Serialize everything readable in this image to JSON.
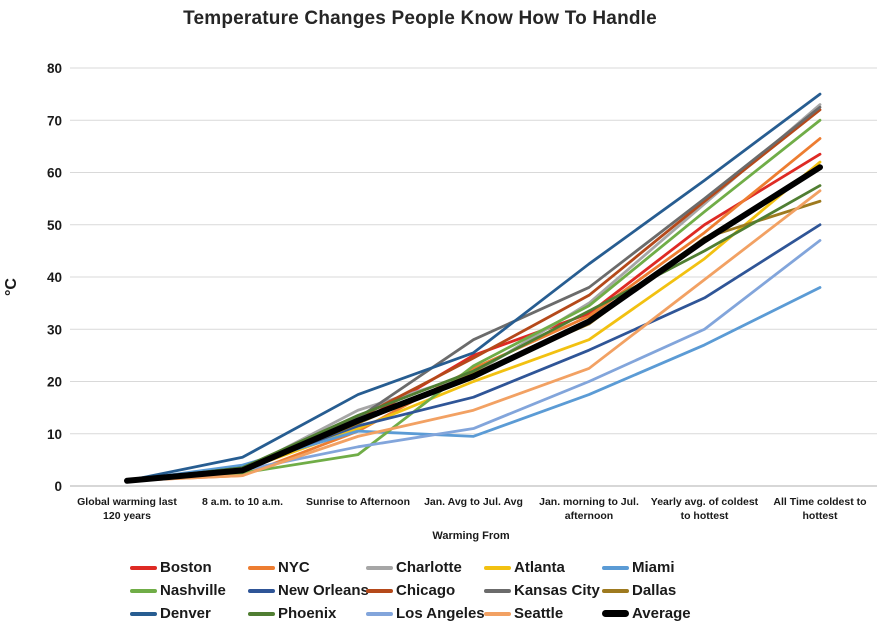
{
  "title": "Temperature Changes People Know How To Handle",
  "chart_data": {
    "type": "line",
    "title": "Temperature Changes People Know How To Handle",
    "xlabel": "Warming From",
    "ylabel": "°C",
    "ylim": [
      0,
      80
    ],
    "y_ticks": [
      0,
      10,
      20,
      30,
      40,
      50,
      60,
      70,
      80
    ],
    "grid": true,
    "legend_position": "bottom",
    "categories": [
      "Global warming last 120 years",
      "8 a.m. to 10 a.m.",
      "Sunrise to Afternoon",
      "Jan. Avg to Jul. Avg",
      "Jan. morning to Jul. afternoon",
      "Yearly avg. of coldest to hottest",
      "All Time coldest to hottest"
    ],
    "category_lines": [
      [
        "Global warming last",
        "120 years"
      ],
      [
        "8 a.m. to 10 a.m."
      ],
      [
        "Sunrise to Afternoon"
      ],
      [
        "Jan. Avg to Jul. Avg"
      ],
      [
        "Jan. morning to Jul.",
        "afternoon"
      ],
      [
        "Yearly avg. of coldest",
        "to hottest"
      ],
      [
        "All Time coldest to",
        "hottest"
      ]
    ],
    "series": [
      {
        "name": "Boston",
        "color": "#DE2A24",
        "width": 2.8,
        "values": [
          1,
          3,
          12,
          25,
          33,
          50,
          63.5
        ]
      },
      {
        "name": "NYC",
        "color": "#ED7D31",
        "width": 2.8,
        "values": [
          1,
          2,
          10.5,
          22.5,
          32.5,
          48.5,
          66.5
        ]
      },
      {
        "name": "Charlotte",
        "color": "#A6A6A6",
        "width": 2.8,
        "values": [
          1,
          3,
          14.5,
          21.5,
          35,
          54,
          73
        ]
      },
      {
        "name": "Atlanta",
        "color": "#F2C111",
        "width": 2.8,
        "values": [
          1,
          3,
          11,
          20,
          28,
          43.5,
          62
        ]
      },
      {
        "name": "Miami",
        "color": "#5B9BD5",
        "width": 2.8,
        "values": [
          1,
          4,
          10.5,
          9.5,
          17.5,
          27,
          38
        ]
      },
      {
        "name": "Nashville",
        "color": "#70AD47",
        "width": 2.8,
        "values": [
          1,
          2.5,
          6,
          23,
          34.5,
          52.5,
          70
        ]
      },
      {
        "name": "New Orleans",
        "color": "#2F5597",
        "width": 2.8,
        "values": [
          1,
          3.5,
          11.5,
          17,
          26,
          36,
          50
        ]
      },
      {
        "name": "Chicago",
        "color": "#B5491A",
        "width": 2.8,
        "values": [
          1,
          3,
          13,
          24.5,
          36.5,
          54.5,
          72
        ]
      },
      {
        "name": "Kansas City",
        "color": "#6B6B6B",
        "width": 2.8,
        "values": [
          1,
          3,
          13,
          28,
          38,
          55,
          72.5
        ]
      },
      {
        "name": "Dallas",
        "color": "#9E7A1F",
        "width": 2.8,
        "values": [
          1,
          3,
          12,
          21.5,
          31,
          47.5,
          54.5
        ]
      },
      {
        "name": "Denver",
        "color": "#275D91",
        "width": 2.8,
        "values": [
          1,
          5.5,
          17.5,
          25.5,
          42.5,
          58.5,
          75
        ]
      },
      {
        "name": "Phoenix",
        "color": "#507E32",
        "width": 2.8,
        "values": [
          1,
          3.5,
          13.5,
          22,
          33.5,
          45,
          57.5
        ]
      },
      {
        "name": "Los Angeles",
        "color": "#82A5DB",
        "width": 2.8,
        "values": [
          1,
          3,
          7.5,
          11,
          20,
          30,
          47
        ]
      },
      {
        "name": "Seattle",
        "color": "#F2A163",
        "width": 2.8,
        "values": [
          1,
          2,
          9.5,
          14.5,
          22.5,
          39.5,
          56.5
        ]
      },
      {
        "name": "Average",
        "color": "#000000",
        "width": 6,
        "values": [
          1,
          3,
          12.5,
          21,
          31.5,
          47,
          61
        ]
      }
    ]
  }
}
